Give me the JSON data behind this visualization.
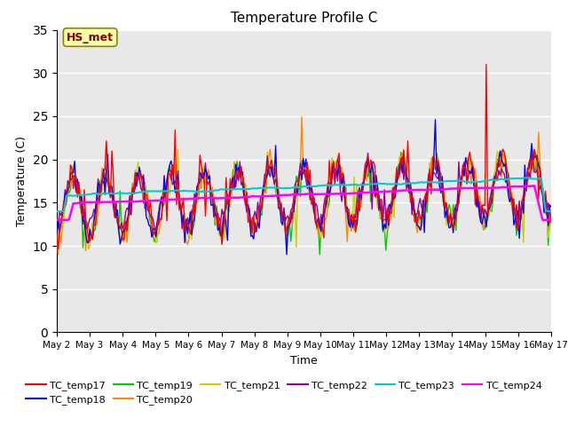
{
  "title": "Temperature Profile C",
  "xlabel": "Time",
  "ylabel": "Temperature (C)",
  "ylim": [
    0,
    35
  ],
  "yticks": [
    0,
    5,
    10,
    15,
    20,
    25,
    30,
    35
  ],
  "x_labels": [
    "May 2",
    "May 3",
    "May 4",
    "May 5",
    "May 6",
    "May 7",
    "May 8",
    "May 9",
    "May 10",
    "May 11",
    "May 12",
    "May 13",
    "May 14",
    "May 15",
    "May 16",
    "May 17"
  ],
  "series_colors": {
    "TC_temp17": "#ff0000",
    "TC_temp18": "#0000ff",
    "TC_temp19": "#00cc00",
    "TC_temp20": "#ff8800",
    "TC_temp21": "#cccc00",
    "TC_temp22": "#990099",
    "TC_temp23": "#00cccc",
    "TC_temp24": "#ff00ff"
  },
  "annotation_text": "HS_met",
  "annotation_color": "#880000",
  "annotation_bg": "#ffffaa",
  "background_color": "#e8e8e8"
}
